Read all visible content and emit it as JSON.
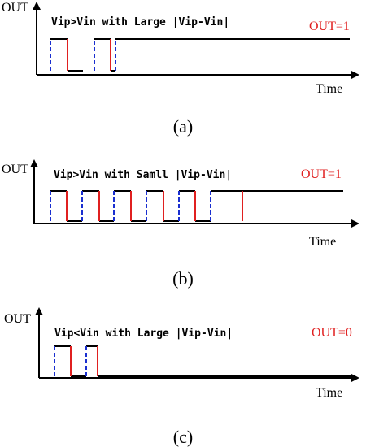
{
  "panels": [
    {
      "y_label": "OUT",
      "title": "Vip>Vin with Large |Vip-Vin|",
      "output": "OUT=1",
      "x_label": "Time",
      "caption": "(a)"
    },
    {
      "y_label": "OUT",
      "title": "Vip>Vin with Samll |Vip-Vin|",
      "output": "OUT=1",
      "x_label": "Time",
      "caption": "(b)"
    },
    {
      "y_label": "OUT",
      "title": "Vip<Vin with Large |Vip-Vin|",
      "output": "OUT=0",
      "x_label": "Time",
      "caption": "(c)"
    }
  ]
}
